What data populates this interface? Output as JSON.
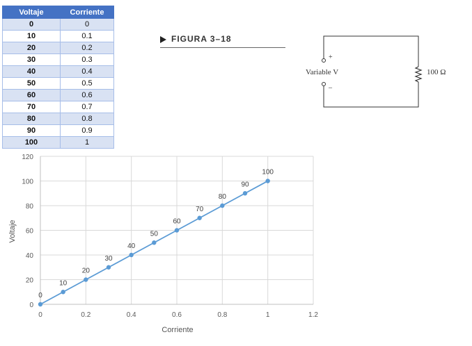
{
  "table": {
    "headers": [
      "Voltaje",
      "Corriente"
    ],
    "rows": [
      [
        "0",
        "0"
      ],
      [
        "10",
        "0.1"
      ],
      [
        "20",
        "0.2"
      ],
      [
        "30",
        "0.3"
      ],
      [
        "40",
        "0.4"
      ],
      [
        "50",
        "0.5"
      ],
      [
        "60",
        "0.6"
      ],
      [
        "70",
        "0.7"
      ],
      [
        "80",
        "0.8"
      ],
      [
        "90",
        "0.9"
      ],
      [
        "100",
        "1"
      ]
    ]
  },
  "figure": {
    "label": "FIGURA 3–18"
  },
  "circuit": {
    "source_label": "Variable V",
    "resistor_label": "100 Ω",
    "plus": "+",
    "minus": "–"
  },
  "chart_data": {
    "type": "scatter",
    "xlabel": "Corriente",
    "ylabel": "Voltaje",
    "xlim": [
      0,
      1.2
    ],
    "ylim": [
      0,
      120
    ],
    "xticks": [
      "0",
      "0.2",
      "0.4",
      "0.6",
      "0.8",
      "1",
      "1.2"
    ],
    "yticks": [
      "0",
      "20",
      "40",
      "60",
      "80",
      "100",
      "120"
    ],
    "grid": true,
    "color": "#5b9bd5",
    "x": [
      0,
      0.1,
      0.2,
      0.3,
      0.4,
      0.5,
      0.6,
      0.7,
      0.8,
      0.9,
      1
    ],
    "y": [
      0,
      10,
      20,
      30,
      40,
      50,
      60,
      70,
      80,
      90,
      100
    ],
    "data_labels": [
      "0",
      "10",
      "20",
      "30",
      "40",
      "50",
      "60",
      "70",
      "80",
      "90",
      "100"
    ]
  }
}
